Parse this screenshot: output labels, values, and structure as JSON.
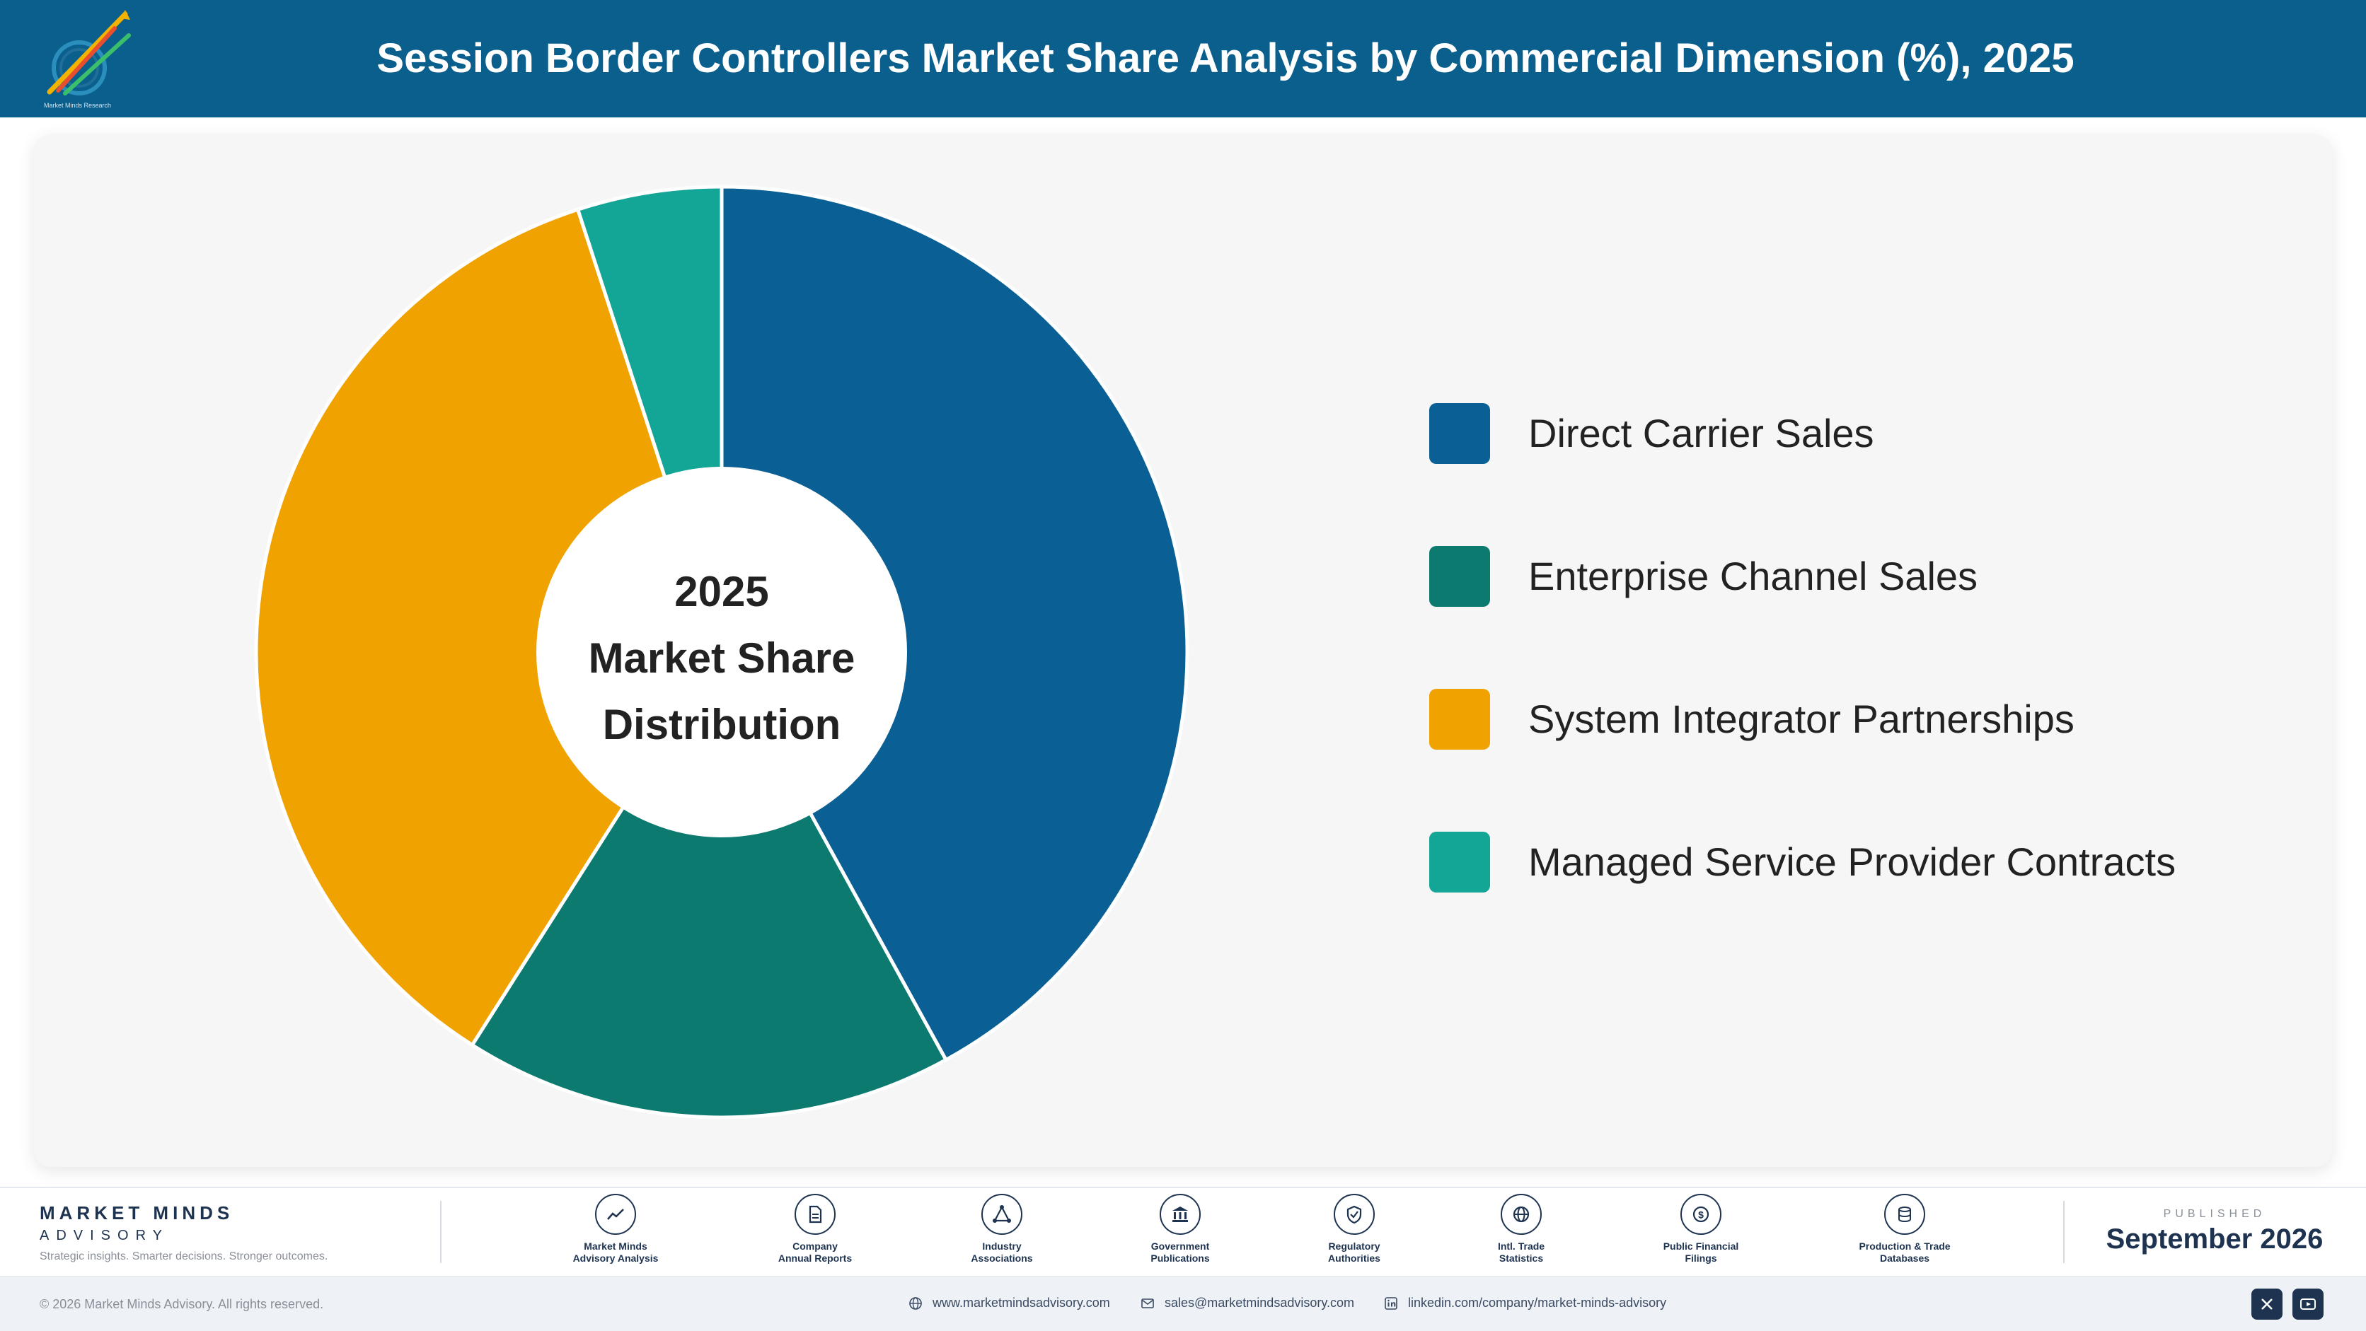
{
  "header": {
    "title": "Session Border Controllers Market Share Analysis by Commercial Dimension (%), 2025",
    "logo_icon": "market-minds-logo",
    "logo_text": "Market Minds Research"
  },
  "chart_data": {
    "type": "pie",
    "style": "donut",
    "center_label": {
      "line1": "2025",
      "line2": "Market Share",
      "line3": "Distribution"
    },
    "series": [
      {
        "name": "Direct Carrier Sales",
        "value": 42,
        "color": "#0a5f94"
      },
      {
        "name": "Enterprise Channel Sales",
        "value": 17,
        "color": "#0d7a70"
      },
      {
        "name": "System Integrator Partnerships",
        "value": 36,
        "color": "#f0a200"
      },
      {
        "name": "Managed Service Provider Contracts",
        "value": 5,
        "color": "#13a595"
      }
    ],
    "legend_position": "right"
  },
  "footer": {
    "brand": {
      "name": "MARKET MINDS",
      "sub": "ADVISORY",
      "tagline": "Strategic insights. Smarter decisions. Stronger outcomes."
    },
    "sources": [
      {
        "label": "Market Minds\nAdvisory Analysis",
        "icon": "trend-line-icon"
      },
      {
        "label": "Company\nAnnual Reports",
        "icon": "document-icon"
      },
      {
        "label": "Industry\nAssociations",
        "icon": "network-icon"
      },
      {
        "label": "Government\nPublications",
        "icon": "government-building-icon"
      },
      {
        "label": "Regulatory\nAuthorities",
        "icon": "shield-check-icon"
      },
      {
        "label": "Intl. Trade\nStatistics",
        "icon": "globe-icon"
      },
      {
        "label": "Public Financial\nFilings",
        "icon": "dollar-coin-icon"
      },
      {
        "label": "Production & Trade\nDatabases",
        "icon": "database-icon"
      }
    ],
    "published_label": "PUBLISHED",
    "published_date": "September 2026",
    "copyright": "© 2026 Market Minds Advisory. All rights reserved.",
    "website": "www.marketmindsadvisory.com",
    "email": "sales@marketmindsadvisory.com",
    "linkedin": "linkedin.com/company/market-minds-advisory",
    "social": [
      {
        "name": "x-icon"
      },
      {
        "name": "youtube-icon"
      }
    ]
  }
}
